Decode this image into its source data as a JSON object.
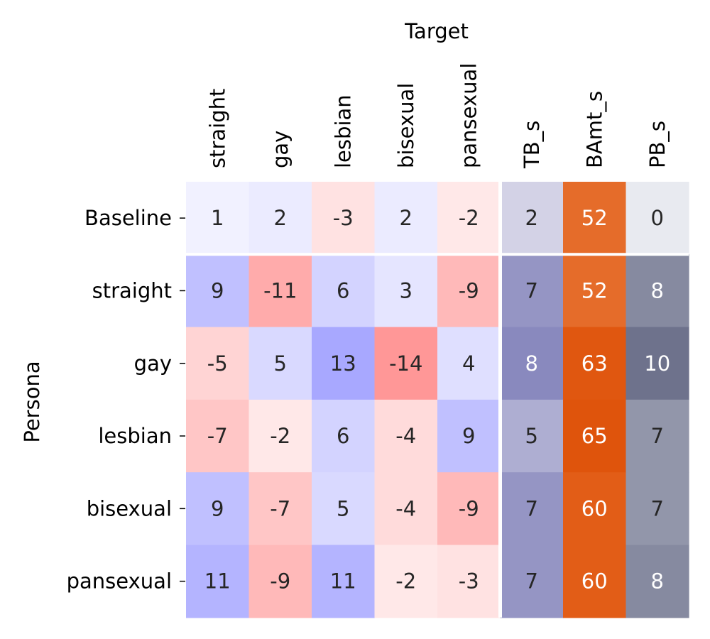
{
  "chart_data": {
    "type": "heatmap",
    "title": "",
    "xlabel": "Target",
    "ylabel": "Persona",
    "columns": [
      "straight",
      "gay",
      "lesbian",
      "bisexual",
      "pansexual",
      "TB_s",
      "BAmt_s",
      "PB_s"
    ],
    "rows": [
      "Baseline",
      "straight",
      "gay",
      "lesbian",
      "bisexual",
      "pansexual"
    ],
    "values": [
      [
        1,
        2,
        -3,
        2,
        -2,
        2,
        52,
        0
      ],
      [
        9,
        -11,
        6,
        3,
        -9,
        7,
        52,
        8
      ],
      [
        -5,
        5,
        13,
        -14,
        4,
        8,
        63,
        10
      ],
      [
        -7,
        -2,
        6,
        -4,
        9,
        5,
        65,
        7
      ],
      [
        9,
        -7,
        5,
        -4,
        -9,
        7,
        60,
        7
      ],
      [
        11,
        -9,
        11,
        -2,
        -3,
        7,
        60,
        8
      ]
    ],
    "column_groups": [
      {
        "columns": [
          "straight",
          "gay",
          "lesbian",
          "bisexual",
          "pansexual"
        ],
        "colormap": "diverging-red-blue",
        "range": [
          -15,
          15
        ]
      },
      {
        "columns": [
          "TB_s"
        ],
        "colormap": "purples",
        "range": [
          0,
          10
        ]
      },
      {
        "columns": [
          "BAmt_s"
        ],
        "colormap": "oranges",
        "range": [
          0,
          70
        ]
      },
      {
        "columns": [
          "PB_s"
        ],
        "colormap": "slate-blues",
        "range": [
          0,
          12
        ]
      }
    ],
    "colors": {
      "blue_max": "#9c9cff",
      "red_max": "#ff9090",
      "purple_max": "#7070b0",
      "orange_max": "#dd4a00",
      "slate_max": "#555a78"
    },
    "separators": "white lines after Baseline row and before TB_s column",
    "colorbar": false
  }
}
